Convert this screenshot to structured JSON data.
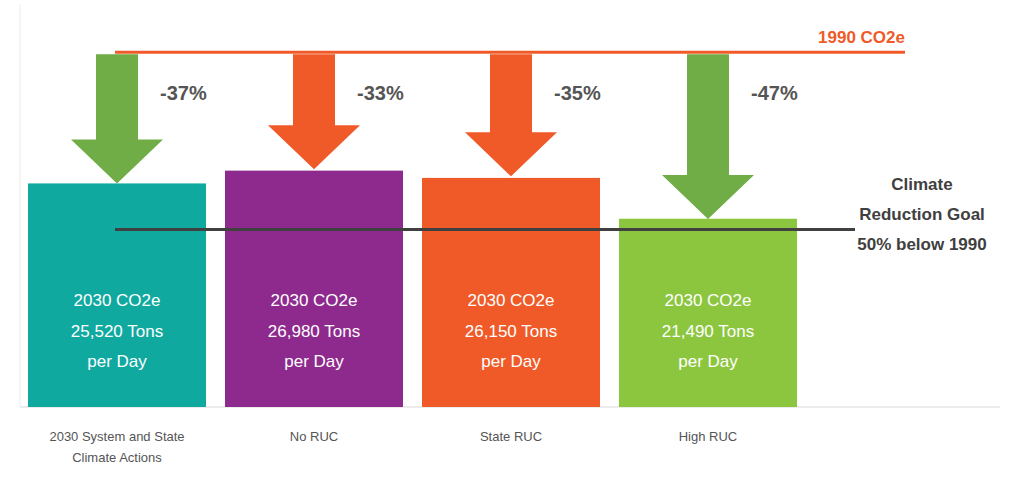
{
  "chart_data": {
    "type": "bar",
    "categories": [
      "2030 System and State Climate Actions",
      "No RUC",
      "State RUC",
      "High RUC"
    ],
    "values": [
      25520,
      26980,
      26150,
      21490
    ],
    "value_labels": [
      "25,520 Tons",
      "26,980 Tons",
      "26,150 Tons",
      "21,490 Tons"
    ],
    "value_label_prefix": "2030 CO2e",
    "value_label_suffix": "per Day",
    "colors": [
      "#0fa9a0",
      "#8e2a8e",
      "#f05a28",
      "#8cc63f"
    ],
    "data_labels": true,
    "changes": [
      -37,
      -33,
      -35,
      -47
    ],
    "change_labels": [
      "-37%",
      "-33%",
      "-35%",
      "-47%"
    ],
    "reference_lines": [
      {
        "label": "1990 CO2e",
        "value": 40500,
        "color": "#f05a28"
      },
      {
        "label": "Climate Reduction Goal 50% below 1990",
        "value": 20250,
        "color": "#404040"
      }
    ],
    "ylim": [
      0,
      46000
    ],
    "yticks": [],
    "tick_labels": false,
    "grid": false
  }
}
